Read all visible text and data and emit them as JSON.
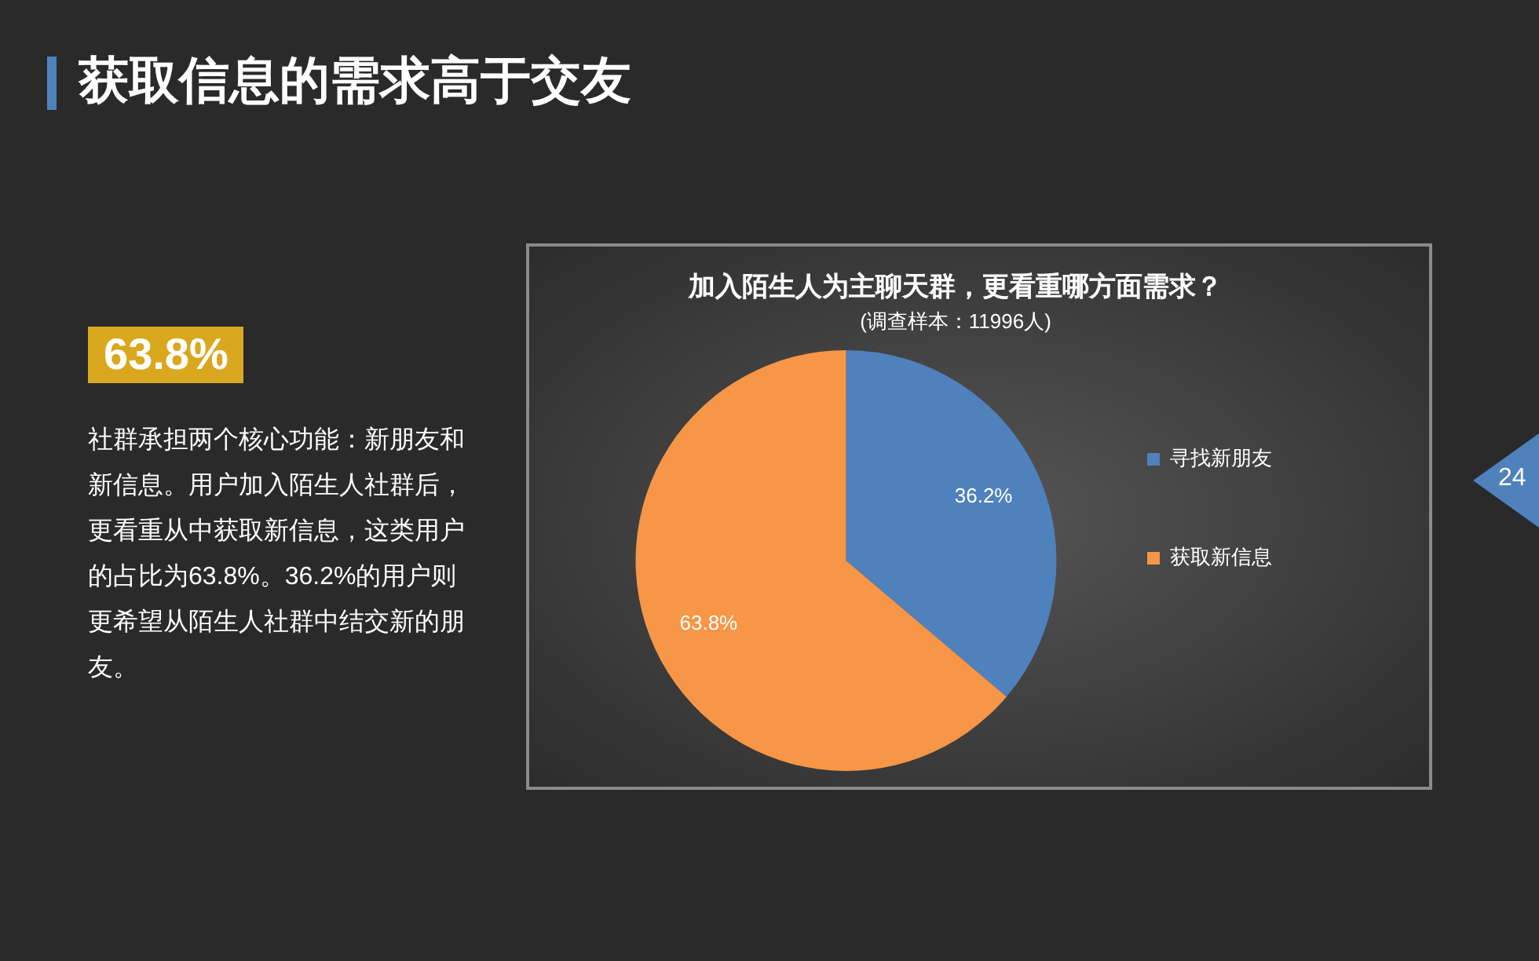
{
  "chart_data": {
    "type": "pie",
    "title": "加入陌生人为主聊天群，更看重哪方面需求？",
    "subtitle": "(调查样本：11996人)",
    "categories": [
      "寻找新朋友",
      "获取新信息"
    ],
    "values": [
      36.2,
      63.8
    ],
    "colors": [
      "#4f81bd",
      "#f79646"
    ],
    "value_labels": [
      "36.2%",
      "63.8%"
    ],
    "legend": "right",
    "annotations": [
      "获取信息的需求高于交友",
      "63.8%",
      "社群承担两个核心功能：新朋友和新信息。用户加入陌生人社群后，更看重从中获取新信息，这类用户的占比为63.8%。36.2%的用户则更希望从陌生人社群中结交新的朋友。",
      "24"
    ]
  }
}
